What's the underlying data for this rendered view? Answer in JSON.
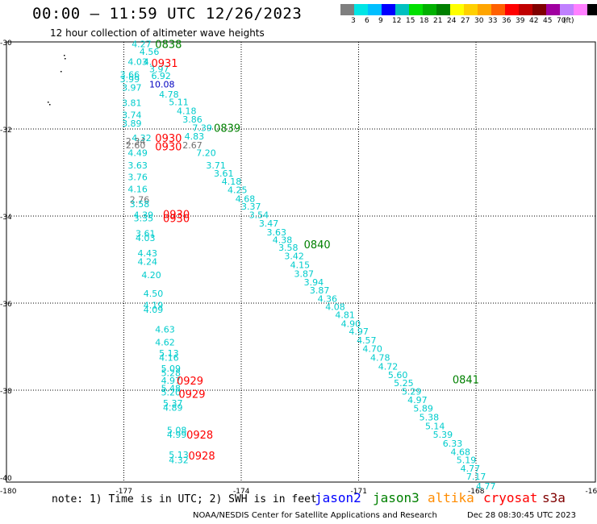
{
  "title": "00:00 – 11:59 UTC 12/26/2023",
  "subtitle": "12 hour collection of altimeter wave heights",
  "legend": {
    "colors": [
      "#7f7f7f",
      "#00e5e5",
      "#00bfff",
      "#0000ff",
      "#00c0c0",
      "#00e000",
      "#00b000",
      "#008000",
      "#ffff00",
      "#ffd000",
      "#ffa500",
      "#ff6000",
      "#ff0000",
      "#c00000",
      "#800000",
      "#a000a0",
      "#c080ff",
      "#ff80ff",
      "#000000"
    ],
    "labels": [
      "3",
      "6",
      "9",
      "12",
      "15",
      "18",
      "21",
      "24",
      "27",
      "30",
      "33",
      "36",
      "39",
      "42",
      "45",
      "70",
      "(ft)"
    ]
  },
  "map": {
    "lon_ticks": [
      "-180",
      "-177",
      "-174",
      "-171",
      "-168",
      "-16"
    ],
    "lat_ticks": [
      "-30",
      "-32",
      "-34",
      "-36",
      "-38",
      "-40"
    ]
  },
  "note": "note: 1) Time is in UTC; 2) SWH is in feet",
  "satellites": [
    {
      "name": "jason2",
      "color": "#0000ff"
    },
    {
      "name": "jason3",
      "color": "#008000"
    },
    {
      "name": "altika",
      "color": "#ff8c00"
    },
    {
      "name": "cryosat",
      "color": "#ff0000"
    },
    {
      "name": "s3a",
      "color": "#800000"
    }
  ],
  "footer_left": "NOAA/NESDIS Center for Satellite Applications and Research",
  "footer_right": "Dec 28 08:30:45 UTC 2023",
  "colors": {
    "cyan": "#00cccc",
    "green": "#008000",
    "red": "#ff0000",
    "blue": "#0000c0",
    "gray": "#707070"
  },
  "readings": [
    {
      "lon": -176.8,
      "lat": -30.05,
      "v": "4.27",
      "c": "cyan"
    },
    {
      "lon": -176.6,
      "lat": -30.22,
      "v": "4.56",
      "c": "cyan"
    },
    {
      "lon": -176.9,
      "lat": -30.45,
      "v": "4.03",
      "c": "cyan"
    },
    {
      "lon": -176.5,
      "lat": -30.45,
      "v": "4.",
      "c": "cyan"
    },
    {
      "lon": -176.35,
      "lat": -30.62,
      "v": "3.97",
      "c": "cyan"
    },
    {
      "lon": -177.1,
      "lat": -30.75,
      "v": "3.66",
      "c": "cyan"
    },
    {
      "lon": -177.1,
      "lat": -30.85,
      "v": "3.99",
      "c": "cyan"
    },
    {
      "lon": -176.3,
      "lat": -30.78,
      "v": "6.92",
      "c": "cyan"
    },
    {
      "lon": -177.05,
      "lat": -31.05,
      "v": "3.97",
      "c": "cyan"
    },
    {
      "lon": -176.35,
      "lat": -30.97,
      "v": "10.08",
      "c": "blue"
    },
    {
      "lon": -176.1,
      "lat": -31.2,
      "v": "4.78",
      "c": "cyan"
    },
    {
      "lon": -177.05,
      "lat": -31.4,
      "v": "3.81",
      "c": "cyan"
    },
    {
      "lon": -175.85,
      "lat": -31.38,
      "v": "5.11",
      "c": "cyan"
    },
    {
      "lon": -175.65,
      "lat": -31.58,
      "v": "4.18",
      "c": "cyan"
    },
    {
      "lon": -177.05,
      "lat": -31.68,
      "v": "3.74",
      "c": "cyan"
    },
    {
      "lon": -175.5,
      "lat": -31.78,
      "v": "3.86",
      "c": "cyan"
    },
    {
      "lon": -177.05,
      "lat": -31.87,
      "v": "3.89",
      "c": "cyan"
    },
    {
      "lon": -175.25,
      "lat": -31.97,
      "v": "7.39",
      "c": "cyan"
    },
    {
      "lon": -176.8,
      "lat": -32.2,
      "v": "4.32",
      "c": "cyan"
    },
    {
      "lon": -175.45,
      "lat": -32.17,
      "v": "4.83",
      "c": "cyan"
    },
    {
      "lon": -176.95,
      "lat": -32.28,
      "v": "2.34",
      "c": "gray"
    },
    {
      "lon": -176.95,
      "lat": -32.37,
      "v": "2.60",
      "c": "gray"
    },
    {
      "lon": -175.5,
      "lat": -32.37,
      "v": "2.67",
      "c": "gray"
    },
    {
      "lon": -176.9,
      "lat": -32.55,
      "v": "4.49",
      "c": "cyan"
    },
    {
      "lon": -175.15,
      "lat": -32.55,
      "v": "7.20",
      "c": "cyan"
    },
    {
      "lon": -176.9,
      "lat": -32.83,
      "v": "3.63",
      "c": "cyan"
    },
    {
      "lon": -174.9,
      "lat": -32.83,
      "v": "3.71",
      "c": "cyan"
    },
    {
      "lon": -174.7,
      "lat": -33.02,
      "v": "3.61",
      "c": "cyan"
    },
    {
      "lon": -176.9,
      "lat": -33.1,
      "v": "3.76",
      "c": "cyan"
    },
    {
      "lon": -174.5,
      "lat": -33.2,
      "v": "4.18",
      "c": "cyan"
    },
    {
      "lon": -176.9,
      "lat": -33.38,
      "v": "4.16",
      "c": "cyan"
    },
    {
      "lon": -174.35,
      "lat": -33.4,
      "v": "4.25",
      "c": "cyan"
    },
    {
      "lon": -176.85,
      "lat": -33.62,
      "v": "2.76",
      "c": "gray"
    },
    {
      "lon": -174.15,
      "lat": -33.6,
      "v": "4.68",
      "c": "cyan"
    },
    {
      "lon": -176.85,
      "lat": -33.72,
      "v": "3.58",
      "c": "cyan"
    },
    {
      "lon": -174.0,
      "lat": -33.78,
      "v": "3.37",
      "c": "cyan"
    },
    {
      "lon": -173.8,
      "lat": -33.97,
      "v": "3.54",
      "c": "cyan"
    },
    {
      "lon": -176.75,
      "lat": -33.97,
      "v": "4.39",
      "c": "cyan"
    },
    {
      "lon": -176.75,
      "lat": -34.05,
      "v": "3.35",
      "c": "cyan"
    },
    {
      "lon": -173.55,
      "lat": -34.17,
      "v": "3.47",
      "c": "cyan"
    },
    {
      "lon": -173.35,
      "lat": -34.37,
      "v": "3.63",
      "c": "cyan"
    },
    {
      "lon": -176.7,
      "lat": -34.4,
      "v": "3.61",
      "c": "cyan"
    },
    {
      "lon": -176.7,
      "lat": -34.5,
      "v": "4.03",
      "c": "cyan"
    },
    {
      "lon": -173.2,
      "lat": -34.55,
      "v": "4.38",
      "c": "cyan"
    },
    {
      "lon": -173.05,
      "lat": -34.72,
      "v": "3.58",
      "c": "cyan"
    },
    {
      "lon": -176.65,
      "lat": -34.85,
      "v": "4.43",
      "c": "cyan"
    },
    {
      "lon": -172.9,
      "lat": -34.92,
      "v": "3.42",
      "c": "cyan"
    },
    {
      "lon": -176.65,
      "lat": -35.05,
      "v": "4.24",
      "c": "cyan"
    },
    {
      "lon": -172.75,
      "lat": -35.12,
      "v": "4.15",
      "c": "cyan"
    },
    {
      "lon": -172.65,
      "lat": -35.32,
      "v": "3.87",
      "c": "cyan"
    },
    {
      "lon": -176.55,
      "lat": -35.35,
      "v": "4.20",
      "c": "cyan"
    },
    {
      "lon": -172.4,
      "lat": -35.52,
      "v": "3.94",
      "c": "cyan"
    },
    {
      "lon": -172.25,
      "lat": -35.7,
      "v": "3.87",
      "c": "cyan"
    },
    {
      "lon": -176.5,
      "lat": -35.78,
      "v": "4.50",
      "c": "cyan"
    },
    {
      "lon": -172.05,
      "lat": -35.9,
      "v": "4.36",
      "c": "cyan"
    },
    {
      "lon": -176.5,
      "lat": -36.05,
      "v": "4.19",
      "c": "cyan"
    },
    {
      "lon": -171.85,
      "lat": -36.08,
      "v": "4.08",
      "c": "cyan"
    },
    {
      "lon": -176.5,
      "lat": -36.15,
      "v": "4.09",
      "c": "cyan"
    },
    {
      "lon": -171.6,
      "lat": -36.27,
      "v": "4.81",
      "c": "cyan"
    },
    {
      "lon": -171.45,
      "lat": -36.47,
      "v": "4.90",
      "c": "cyan"
    },
    {
      "lon": -176.2,
      "lat": -36.6,
      "v": "4.63",
      "c": "cyan"
    },
    {
      "lon": -171.25,
      "lat": -36.65,
      "v": "4.97",
      "c": "cyan"
    },
    {
      "lon": -171.05,
      "lat": -36.85,
      "v": "4.57",
      "c": "cyan"
    },
    {
      "lon": -176.2,
      "lat": -36.9,
      "v": "4.62",
      "c": "cyan"
    },
    {
      "lon": -170.9,
      "lat": -37.05,
      "v": "4.70",
      "c": "cyan"
    },
    {
      "lon": -176.1,
      "lat": -37.15,
      "v": "5.13",
      "c": "cyan"
    },
    {
      "lon": -176.1,
      "lat": -37.25,
      "v": "4.16",
      "c": "cyan"
    },
    {
      "lon": -170.7,
      "lat": -37.25,
      "v": "4.78",
      "c": "cyan"
    },
    {
      "lon": -170.5,
      "lat": -37.45,
      "v": "4.72",
      "c": "cyan"
    },
    {
      "lon": -176.05,
      "lat": -37.5,
      "v": "5.09",
      "c": "cyan"
    },
    {
      "lon": -176.05,
      "lat": -37.6,
      "v": "5.28",
      "c": "cyan"
    },
    {
      "lon": -170.25,
      "lat": -37.65,
      "v": "5.60",
      "c": "cyan"
    },
    {
      "lon": -176.05,
      "lat": -37.78,
      "v": "4.97",
      "c": "cyan"
    },
    {
      "lon": -170.1,
      "lat": -37.83,
      "v": "5.25",
      "c": "cyan"
    },
    {
      "lon": -176.05,
      "lat": -37.95,
      "v": "5.48",
      "c": "cyan"
    },
    {
      "lon": -176.05,
      "lat": -38.05,
      "v": "5.20",
      "c": "cyan"
    },
    {
      "lon": -169.9,
      "lat": -38.03,
      "v": "5.29",
      "c": "cyan"
    },
    {
      "lon": -169.75,
      "lat": -38.22,
      "v": "4.97",
      "c": "cyan"
    },
    {
      "lon": -176.0,
      "lat": -38.3,
      "v": "5.37",
      "c": "cyan"
    },
    {
      "lon": -176.0,
      "lat": -38.4,
      "v": "4.89",
      "c": "cyan"
    },
    {
      "lon": -169.6,
      "lat": -38.42,
      "v": "5.89",
      "c": "cyan"
    },
    {
      "lon": -169.45,
      "lat": -38.62,
      "v": "5.38",
      "c": "cyan"
    },
    {
      "lon": -169.3,
      "lat": -38.82,
      "v": "5.14",
      "c": "cyan"
    },
    {
      "lon": -175.9,
      "lat": -38.92,
      "v": "5.08",
      "c": "cyan"
    },
    {
      "lon": -175.9,
      "lat": -39.02,
      "v": "4.99",
      "c": "cyan"
    },
    {
      "lon": -169.1,
      "lat": -39.02,
      "v": "5.39",
      "c": "cyan"
    },
    {
      "lon": -168.85,
      "lat": -39.22,
      "v": "6.33",
      "c": "cyan"
    },
    {
      "lon": -168.65,
      "lat": -39.42,
      "v": "4.68",
      "c": "cyan"
    },
    {
      "lon": -175.85,
      "lat": -39.48,
      "v": "5.13",
      "c": "cyan"
    },
    {
      "lon": -168.5,
      "lat": -39.6,
      "v": "5.19",
      "c": "cyan"
    },
    {
      "lon": -175.85,
      "lat": -39.6,
      "v": "4.32",
      "c": "cyan"
    },
    {
      "lon": -168.4,
      "lat": -39.8,
      "v": "4.77",
      "c": "cyan"
    },
    {
      "lon": -168.25,
      "lat": -39.98,
      "v": "7.17",
      "c": "cyan"
    },
    {
      "lon": -168.0,
      "lat": -40.2,
      "v": "4.77",
      "c": "cyan"
    }
  ],
  "times": [
    {
      "lon": -176.2,
      "lat": -30.05,
      "v": "0838",
      "c": "green"
    },
    {
      "lon": -176.3,
      "lat": -30.48,
      "v": "0931",
      "c": "red"
    },
    {
      "lon": -174.7,
      "lat": -31.97,
      "v": "0839",
      "c": "green"
    },
    {
      "lon": -176.2,
      "lat": -32.2,
      "v": "0930",
      "c": "red"
    },
    {
      "lon": -176.2,
      "lat": -32.4,
      "v": "0930",
      "c": "red"
    },
    {
      "lon": -176.0,
      "lat": -33.95,
      "v": "0930",
      "c": "red"
    },
    {
      "lon": -176.0,
      "lat": -34.05,
      "v": "0930",
      "c": "red"
    },
    {
      "lon": -172.4,
      "lat": -34.65,
      "v": "0840",
      "c": "green"
    },
    {
      "lon": -175.65,
      "lat": -37.78,
      "v": "0929",
      "c": "red"
    },
    {
      "lon": -175.6,
      "lat": -38.08,
      "v": "0929",
      "c": "red"
    },
    {
      "lon": -168.6,
      "lat": -37.75,
      "v": "0841",
      "c": "green"
    },
    {
      "lon": -175.4,
      "lat": -39.02,
      "v": "0928",
      "c": "red"
    },
    {
      "lon": -175.35,
      "lat": -39.5,
      "v": "0928",
      "c": "red"
    }
  ]
}
